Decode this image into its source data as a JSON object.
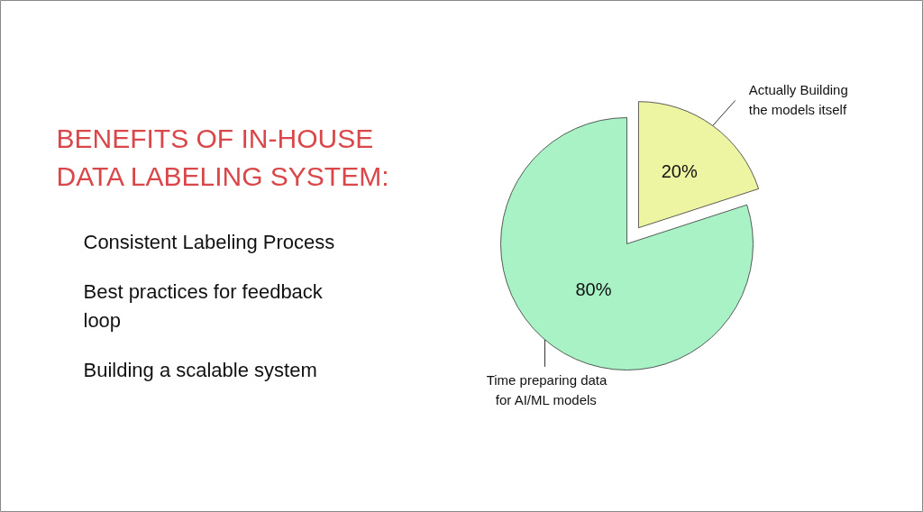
{
  "chart_data": {
    "type": "pie",
    "title": "BENEFITS OF IN-HOUSE DATA LABELING SYSTEM:",
    "annotations": [
      "Consistent Labeling Process",
      "Best practices for feedback loop",
      "Building a scalable system"
    ],
    "categories": [
      "Actually Building the models itself",
      "Time preparing data for AI/ML models"
    ],
    "values": [
      20,
      80
    ],
    "colors": [
      "#eef5a2",
      "#a8f2c6"
    ],
    "value_labels": [
      "20%",
      "80%"
    ]
  }
}
